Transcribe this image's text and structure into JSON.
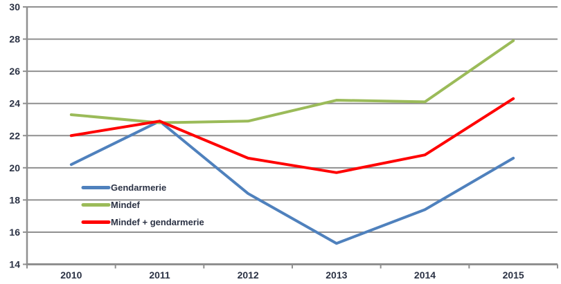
{
  "chart_data": {
    "type": "line",
    "categories": [
      "2010",
      "2011",
      "2012",
      "2013",
      "2014",
      "2015"
    ],
    "series": [
      {
        "name": "Gendarmerie",
        "color": "#4F81BD",
        "values": [
          20.2,
          22.9,
          18.4,
          15.3,
          17.4,
          20.6
        ]
      },
      {
        "name": "Mindef",
        "color": "#9BBB59",
        "values": [
          23.3,
          22.8,
          22.9,
          24.2,
          24.1,
          27.9
        ]
      },
      {
        "name": "Mindef + gendarmerie",
        "color": "#FF0000",
        "values": [
          22.0,
          22.9,
          20.6,
          19.7,
          20.8,
          24.3
        ]
      }
    ],
    "title": "",
    "xlabel": "",
    "ylabel": "",
    "ylim": [
      14,
      30
    ],
    "ytick_step": 2,
    "ytick_labels": [
      "14",
      "16",
      "18",
      "20",
      "22",
      "24",
      "26",
      "28",
      "30"
    ],
    "grid": "horizontal",
    "legend_position": "inside-left-middle",
    "legend_entries": [
      "Gendarmerie",
      "Mindef",
      "Mindef + gendarmerie"
    ]
  },
  "colors": {
    "grid": "#8f8f8f",
    "axis": "#8f8f8f",
    "text": "#2b3244",
    "background": "#ffffff"
  }
}
